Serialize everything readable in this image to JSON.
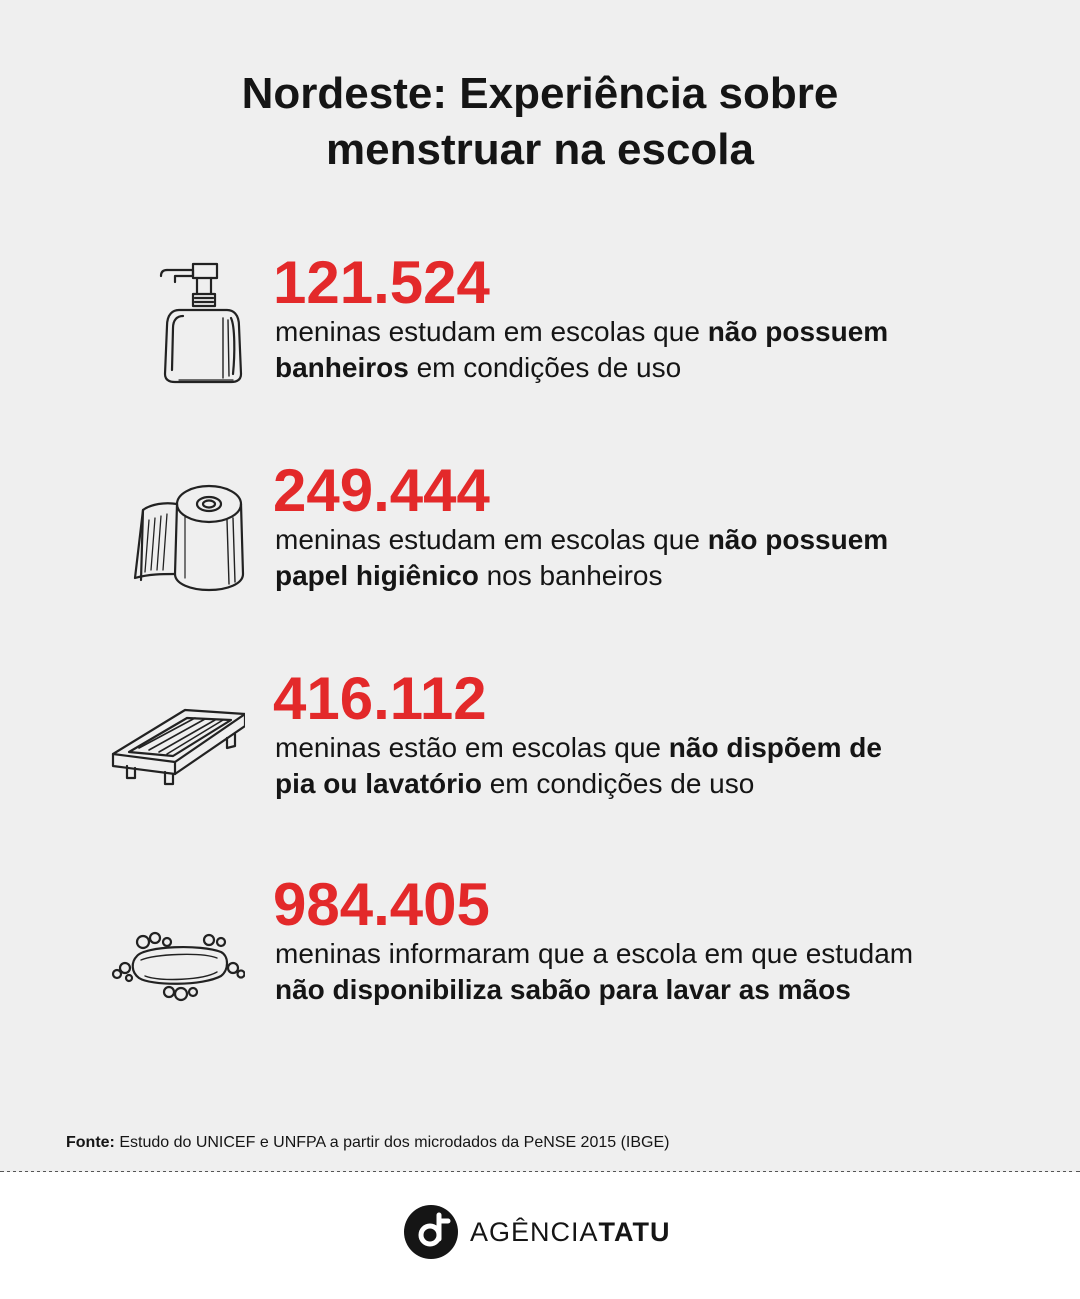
{
  "title": {
    "line1": "Nordeste: Experiência sobre",
    "line2": "menstruar na escola"
  },
  "stats": [
    {
      "icon": "soap-dispenser-icon",
      "number": "121.524",
      "pre": "meninas estudam em escolas que ",
      "bold": "não possuem banheiros",
      "post": " em condições de uso"
    },
    {
      "icon": "toilet-paper-icon",
      "number": "249.444",
      "pre": "meninas estudam em escolas que ",
      "bold": "não possuem papel higiênico",
      "post": " nos banheiros"
    },
    {
      "icon": "sink-drain-icon",
      "number": "416.112",
      "pre": "meninas estão em escolas que ",
      "bold": "não dispõem de pia ou lavatório",
      "post": " em condições de uso"
    },
    {
      "icon": "soap-bar-icon",
      "number": "984.405",
      "pre": "meninas informaram que a escola em que estudam ",
      "bold": "não disponibiliza sabão para lavar as mãos",
      "post": ""
    }
  ],
  "source": {
    "label": "Fonte:",
    "text": " Estudo do UNICEF e UNFPA a partir dos microdados da PeNSE 2015 (IBGE)"
  },
  "brand": {
    "logo_icon": "agencia-tatu-logo-icon",
    "name_light": "AGÊNCIA",
    "name_bold": "TATU"
  },
  "colors": {
    "accent": "#e3292a",
    "text": "#151515",
    "background": "#efefef",
    "footer_background": "#ffffff"
  }
}
